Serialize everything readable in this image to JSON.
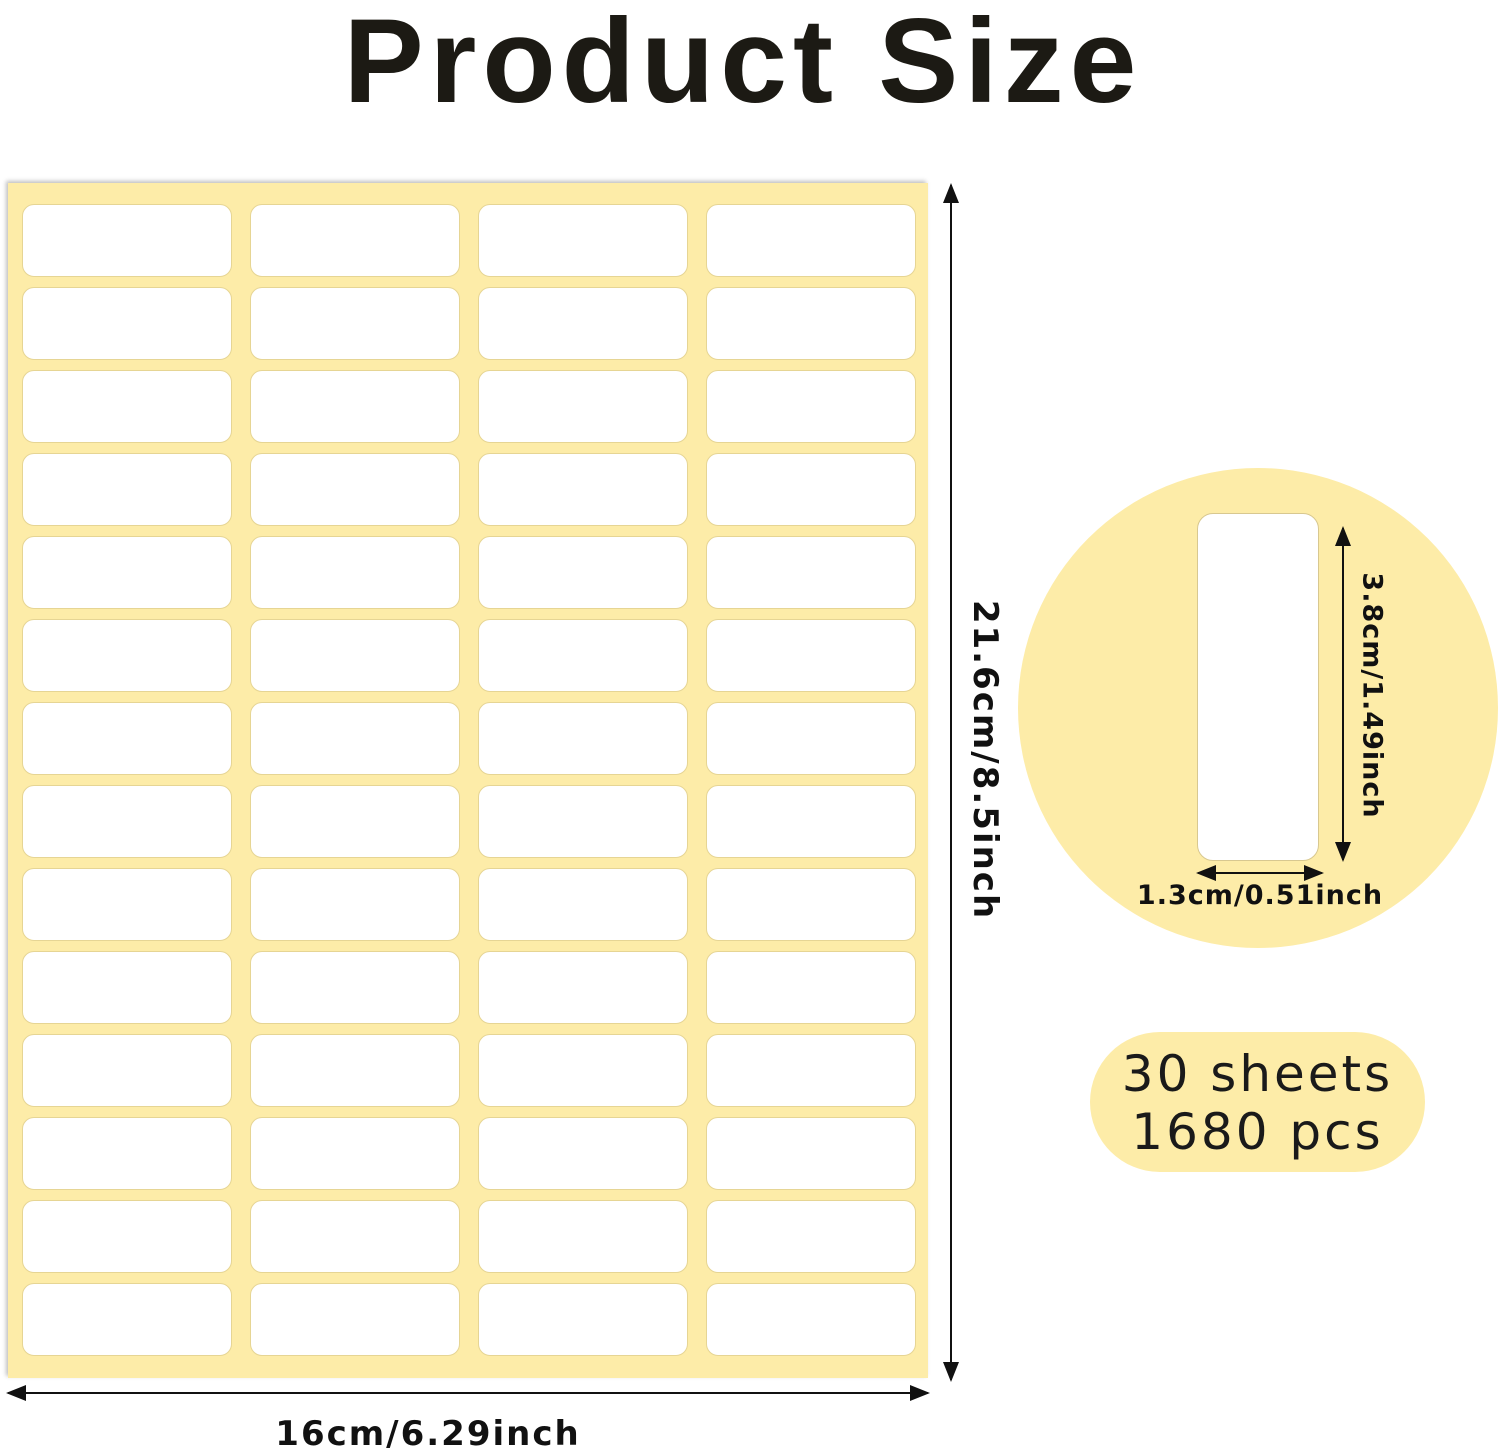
{
  "title": "Product Size",
  "sheet": {
    "columns": 4,
    "rows": 14,
    "color": "#fdeca8"
  },
  "dimensions": {
    "sheet_width": "16cm/6.29inch",
    "sheet_height": "21.6cm/8.5inch",
    "label_width": "1.3cm/0.51inch",
    "label_height": "3.8cm/1.49inch"
  },
  "quantity": {
    "sheets": "30 sheets",
    "pieces": "1680 pcs"
  }
}
